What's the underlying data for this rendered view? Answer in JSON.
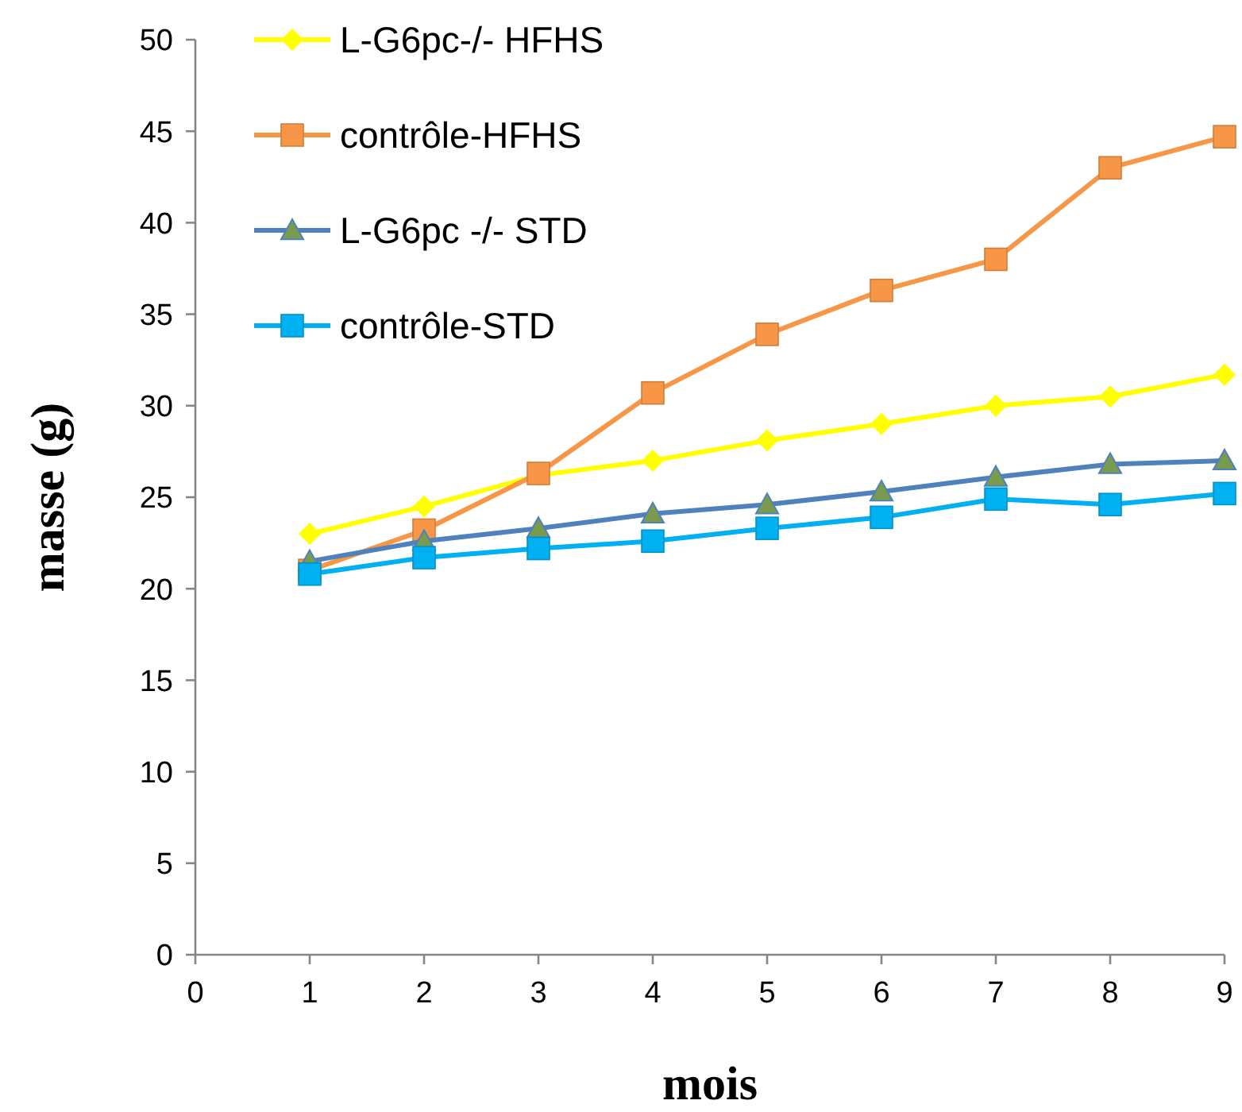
{
  "chart_data": {
    "type": "line",
    "xlabel": "mois",
    "ylabel": "masse (g)",
    "x": [
      1,
      2,
      3,
      4,
      5,
      6,
      7,
      8,
      9
    ],
    "xlim": [
      0,
      9
    ],
    "xticks": [
      0,
      1,
      2,
      3,
      4,
      5,
      6,
      7,
      8,
      9
    ],
    "ylim": [
      0,
      50
    ],
    "yticks": [
      0,
      5,
      10,
      15,
      20,
      25,
      30,
      35,
      40,
      45,
      50
    ],
    "grid": false,
    "legend": "top left",
    "series": [
      {
        "name": "L-G6pc-/- HFHS",
        "color": "#ffff00",
        "marker": "diamond",
        "values": [
          23.0,
          24.5,
          26.2,
          27.0,
          28.1,
          29.0,
          30.0,
          30.5,
          31.7
        ]
      },
      {
        "name": "contrôle-HFHS",
        "color": "#f79646",
        "marker": "square",
        "values": [
          21.0,
          23.2,
          26.3,
          30.7,
          33.9,
          36.3,
          38.0,
          43.0,
          44.7
        ]
      },
      {
        "name": "L-G6pc -/- STD",
        "color": "#4f81bd",
        "marker": "triangle",
        "values": [
          21.5,
          22.6,
          23.3,
          24.1,
          24.6,
          25.3,
          26.1,
          26.8,
          27.0
        ]
      },
      {
        "name": "contrôle-STD",
        "color": "#00b0f0",
        "marker": "square",
        "values": [
          20.8,
          21.7,
          22.2,
          22.6,
          23.3,
          23.9,
          24.9,
          24.6,
          25.2
        ]
      }
    ]
  }
}
